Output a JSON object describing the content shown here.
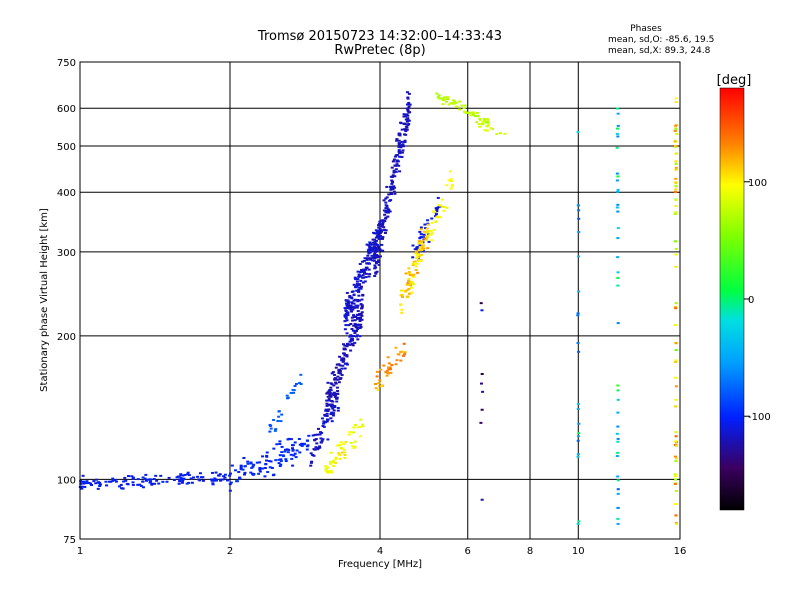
{
  "chart_data": {
    "type": "scatter",
    "title": "Tromsø 20150723 14:32:00–14:33:43",
    "subtitle": "RwPretec (8p)",
    "xlabel": "Frequency [MHz]",
    "ylabel": "Stationary phase Virtual Height [km]",
    "x_scale": "log",
    "y_scale": "log",
    "xlim": [
      1,
      16
    ],
    "ylim": [
      75,
      750
    ],
    "x_ticks": [
      {
        "value": 1,
        "label": "1"
      },
      {
        "value": 2,
        "label": "2"
      },
      {
        "value": 4,
        "label": "4"
      },
      {
        "value": 6,
        "label": "6"
      },
      {
        "value": 8,
        "label": "8"
      },
      {
        "value": 10,
        "label": "10"
      },
      {
        "value": 16,
        "label": "16"
      }
    ],
    "y_ticks": [
      {
        "value": 75,
        "label": "75"
      },
      {
        "value": 100,
        "label": "100"
      },
      {
        "value": 200,
        "label": "200"
      },
      {
        "value": 300,
        "label": "300"
      },
      {
        "value": 400,
        "label": "400"
      },
      {
        "value": 500,
        "label": "500"
      },
      {
        "value": 600,
        "label": "600"
      },
      {
        "value": 750,
        "label": "750"
      }
    ],
    "grid": true,
    "phases": {
      "heading": "Phases",
      "o_stats": "mean, sd,O: -85.6, 19.5",
      "x_stats": "mean, sd,X:  89.3, 24.8"
    },
    "colorbar": {
      "label": "[deg]",
      "range": [
        -180,
        180
      ],
      "ticks": [
        {
          "value": 100,
          "label": "100"
        },
        {
          "value": 0,
          "label": "0"
        },
        {
          "value": -100,
          "label": "-100"
        }
      ]
    },
    "series": [
      {
        "mode": "O",
        "segments": [
          {
            "f0": 1.0,
            "f1": 2.0,
            "h0": 98,
            "h1": 101,
            "n": 130,
            "spread": 0.04,
            "phase": -105,
            "phase_sd": 8
          },
          {
            "f0": 2.0,
            "f1": 2.9,
            "h0": 101,
            "h1": 120,
            "n": 110,
            "spread": 0.08,
            "phase": -100,
            "phase_sd": 10
          },
          {
            "f0": 2.4,
            "f1": 2.8,
            "h0": 125,
            "h1": 165,
            "n": 25,
            "spread": 0.06,
            "phase": -80,
            "phase_sd": 10
          },
          {
            "f0": 2.9,
            "f1": 3.3,
            "h0": 110,
            "h1": 150,
            "n": 80,
            "spread": 0.1,
            "phase": -115,
            "phase_sd": 10
          },
          {
            "f0": 3.1,
            "f1": 3.7,
            "h0": 140,
            "h1": 230,
            "n": 170,
            "spread": 0.1,
            "phase": -120,
            "phase_sd": 10
          },
          {
            "f0": 3.4,
            "f1": 4.0,
            "h0": 220,
            "h1": 330,
            "n": 190,
            "spread": 0.1,
            "phase": -115,
            "phase_sd": 10
          },
          {
            "f0": 3.9,
            "f1": 4.6,
            "h0": 280,
            "h1": 620,
            "n": 200,
            "spread": 0.12,
            "phase": -118,
            "phase_sd": 8
          },
          {
            "f0": 4.6,
            "f1": 5.3,
            "h0": 290,
            "h1": 380,
            "n": 40,
            "spread": 0.08,
            "phase": -110,
            "phase_sd": 10
          }
        ]
      },
      {
        "mode": "X",
        "segments": [
          {
            "f0": 3.1,
            "f1": 3.7,
            "h0": 105,
            "h1": 130,
            "n": 50,
            "spread": 0.07,
            "phase": 95,
            "phase_sd": 15
          },
          {
            "f0": 3.9,
            "f1": 4.5,
            "h0": 155,
            "h1": 190,
            "n": 40,
            "spread": 0.07,
            "phase": 130,
            "phase_sd": 25
          },
          {
            "f0": 4.4,
            "f1": 5.0,
            "h0": 230,
            "h1": 330,
            "n": 90,
            "spread": 0.1,
            "phase": 110,
            "phase_sd": 25
          },
          {
            "f0": 5.0,
            "f1": 5.6,
            "h0": 320,
            "h1": 420,
            "n": 30,
            "spread": 0.08,
            "phase": 95,
            "phase_sd": 15
          },
          {
            "f0": 5.2,
            "f1": 6.6,
            "h0": 640,
            "h1": 560,
            "n": 55,
            "spread": 0.03,
            "phase": 75,
            "phase_sd": 15
          },
          {
            "f0": 6.3,
            "f1": 7.3,
            "h0": 560,
            "h1": 520,
            "n": 12,
            "spread": 0.03,
            "phase": 85,
            "phase_sd": 15
          }
        ]
      },
      {
        "mode": "scatter",
        "columns": [
          {
            "f": 6.4,
            "h0": 80,
            "h1": 240,
            "n": 8,
            "phase": -140
          },
          {
            "f": 10.0,
            "h0": 78,
            "h1": 620,
            "n": 22,
            "phase": -40
          },
          {
            "f": 12.0,
            "h0": 80,
            "h1": 610,
            "n": 40,
            "phase": -30
          },
          {
            "f": 15.7,
            "h0": 80,
            "h1": 660,
            "n": 70,
            "phase": 100
          }
        ]
      }
    ]
  }
}
